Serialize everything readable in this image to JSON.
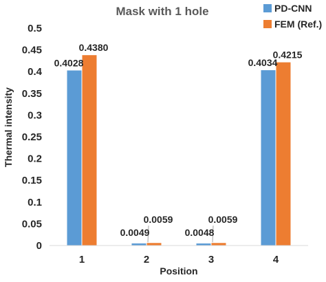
{
  "chart_data": {
    "type": "bar",
    "title": "Mask with 1 hole",
    "xlabel": "Position",
    "ylabel": "Thermal intensity",
    "categories": [
      "1",
      "2",
      "3",
      "4"
    ],
    "series": [
      {
        "name": "PD-CNN",
        "color": "#5b9bd5",
        "values": [
          0.4028,
          0.0049,
          0.0048,
          0.4034
        ],
        "labels": [
          "0.4028",
          "0.0049",
          "0.0048",
          "0.4034"
        ]
      },
      {
        "name": "FEM (Ref.)",
        "color": "#ed7d31",
        "values": [
          0.438,
          0.0059,
          0.0059,
          0.4215
        ],
        "labels": [
          "0.4380",
          "0.0059",
          "0.0059",
          "0.4215"
        ]
      }
    ],
    "ylim": [
      0,
      0.5
    ],
    "yticks": [
      "0",
      "0.05",
      "0.1",
      "0.15",
      "0.2",
      "0.25",
      "0.3",
      "0.35",
      "0.4",
      "0.45",
      "0.5"
    ],
    "grid": false,
    "legend_position": "top-right"
  }
}
